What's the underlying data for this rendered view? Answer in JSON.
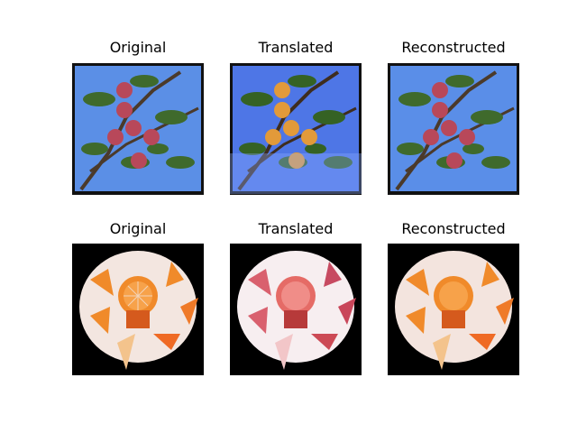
{
  "figure": {
    "rows": [
      {
        "subject": "apples",
        "panels": [
          {
            "title": "Original",
            "variant": "apple-original"
          },
          {
            "title": "Translated",
            "variant": "apple-translated"
          },
          {
            "title": "Reconstructed",
            "variant": "apple-reconstructed"
          }
        ]
      },
      {
        "subject": "oranges",
        "panels": [
          {
            "title": "Original",
            "variant": "orange-original"
          },
          {
            "title": "Translated",
            "variant": "orange-translated"
          },
          {
            "title": "Reconstructed",
            "variant": "orange-reconstructed"
          }
        ]
      }
    ]
  },
  "colors": {
    "sky_blue": "#5b8fe6",
    "leaf_green": "#3f6a2c",
    "apple_red": "#b8485a",
    "apple_orange": "#e29a3a",
    "orange_flesh": "#f08a2a",
    "plate_white": "#f3e6e0",
    "pinkish": "#d9606e",
    "black": "#000000"
  }
}
